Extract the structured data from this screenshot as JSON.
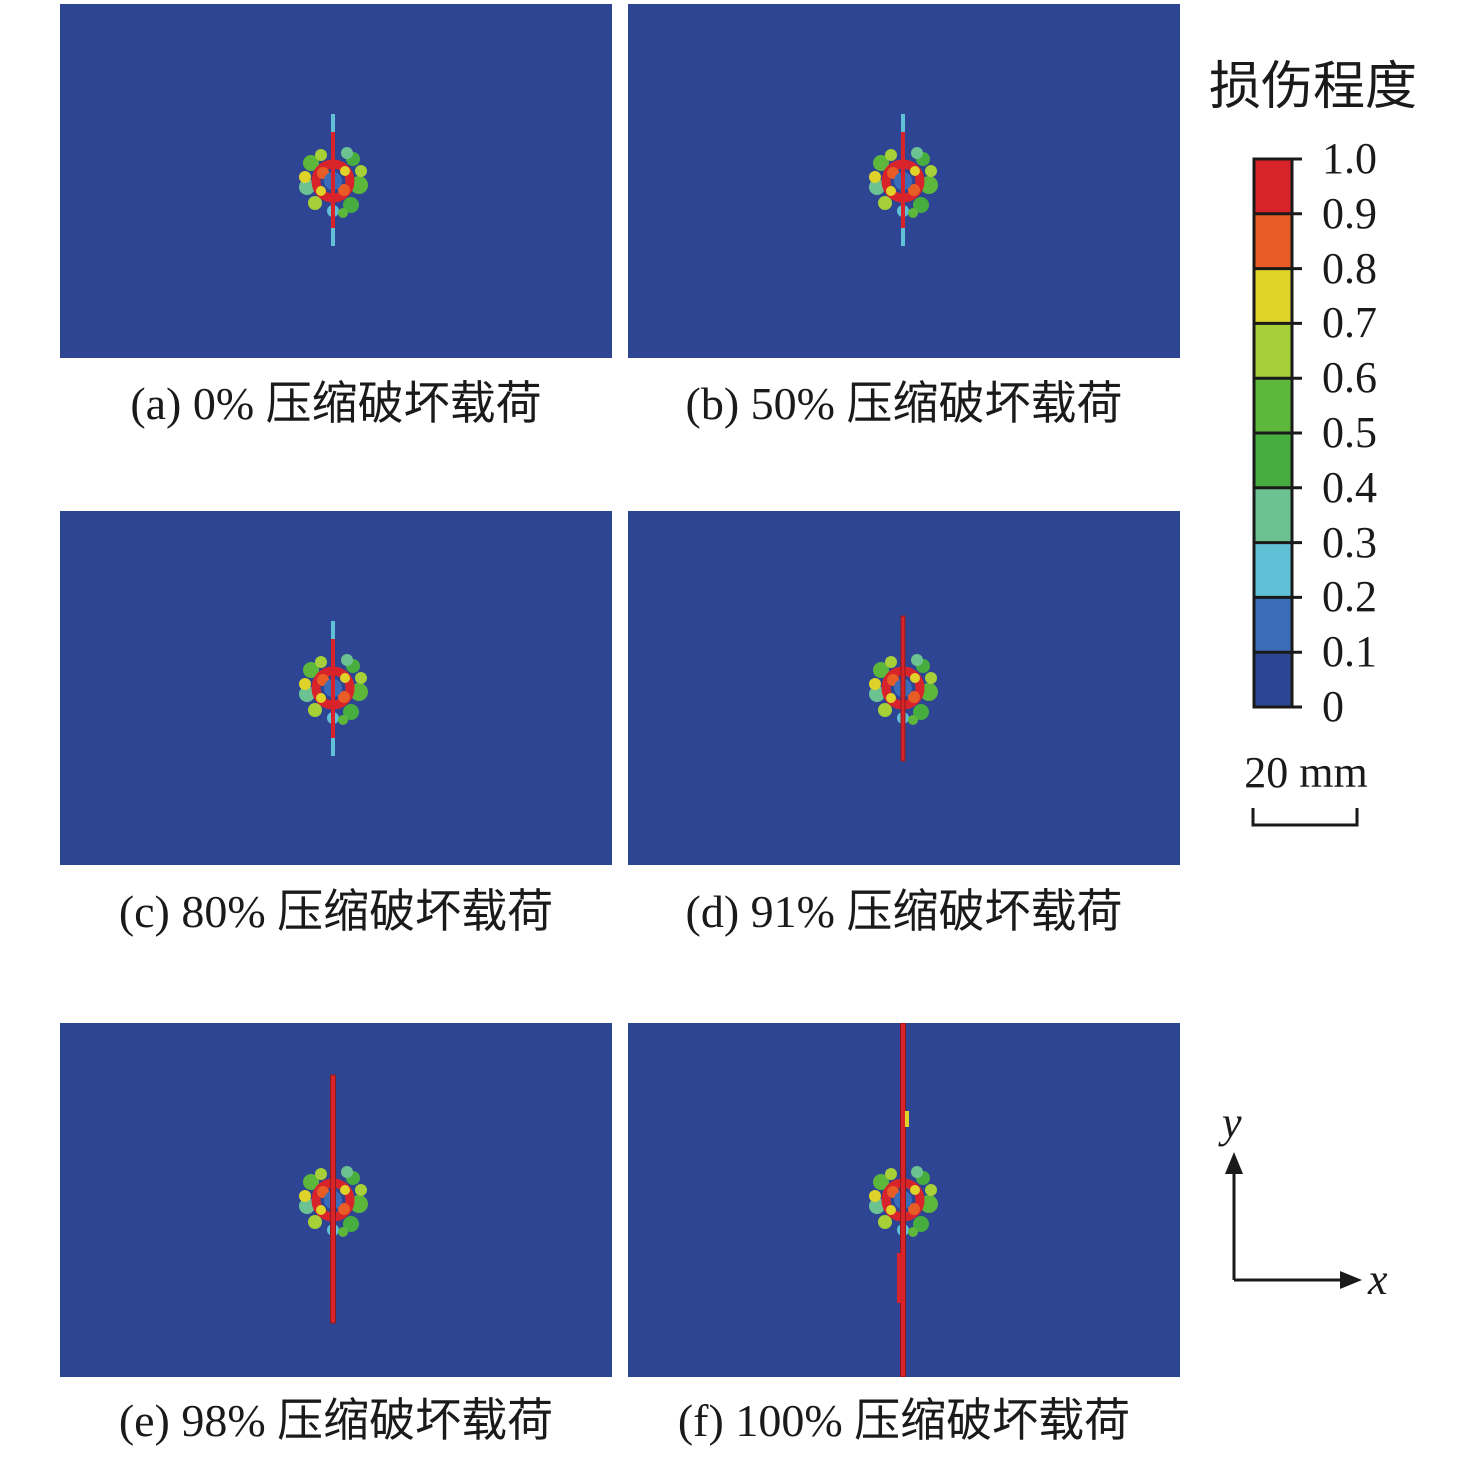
{
  "panels": [
    {
      "caption": "(a) 0% 压缩破坏载荷"
    },
    {
      "caption": "(b) 50% 压缩破坏载荷"
    },
    {
      "caption": "(c) 80% 压缩破坏载荷"
    },
    {
      "caption": "(d) 91% 压缩破坏载荷"
    },
    {
      "caption": "(e) 98% 压缩破坏载荷"
    },
    {
      "caption": "(f) 100% 压缩破坏载荷"
    }
  ],
  "legend": {
    "title": "损伤程度",
    "ticks": [
      "1.0",
      "0.9",
      "0.8",
      "0.7",
      "0.6",
      "0.5",
      "0.4",
      "0.3",
      "0.2",
      "0.1",
      "0"
    ],
    "colors": [
      "#d8232a",
      "#e85d25",
      "#dfd32a",
      "#a6cf38",
      "#5db73a",
      "#48ad3f",
      "#6cc391",
      "#5fc0d6",
      "#3b6cb8",
      "#2c4595"
    ]
  },
  "scale": {
    "label": "20 mm"
  },
  "axes": {
    "x": "x",
    "y": "y"
  },
  "colors": {
    "background": "#2e4594",
    "crack": "#d8232a"
  }
}
